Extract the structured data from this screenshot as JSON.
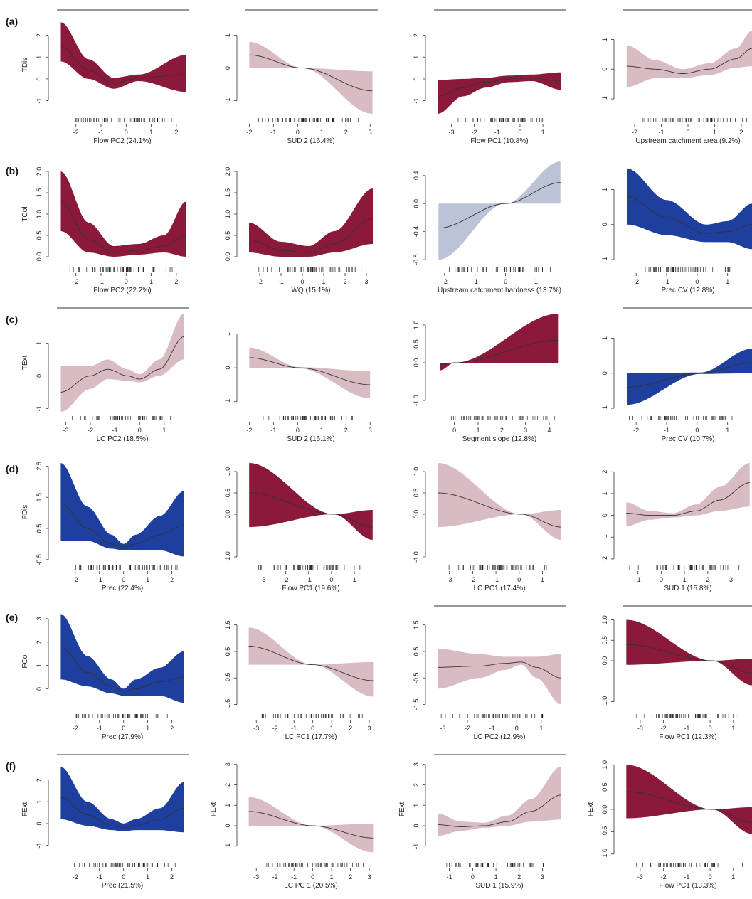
{
  "rows": [
    "(a)",
    "(b)",
    "(c)",
    "(d)",
    "(e)",
    "(f)"
  ],
  "colors": {
    "maroon": "#8b1a3a",
    "blue": "#1f3f9e",
    "pink": "#d9bcc3",
    "lavender": "#bcc3d6",
    "line": "#333333"
  },
  "chart_data": [
    {
      "type": "line",
      "ylabel": "TDis",
      "xlabel": "Flow PC2 (24.1%)",
      "xlim": [
        -2.7,
        2.4
      ],
      "ylim": [
        -1.6,
        2.9
      ],
      "xticks": [
        -2,
        -1,
        0,
        1,
        2
      ],
      "yticks": [
        -1,
        0,
        1,
        2
      ],
      "top_line": true,
      "band_color": "maroon",
      "x": [
        -2.6,
        -1.5,
        -0.5,
        0.5,
        2.4
      ],
      "fit": [
        1.5,
        0.4,
        -0.2,
        0.05,
        0.2
      ],
      "lower": [
        0.8,
        0.0,
        -0.45,
        -0.1,
        -0.6
      ],
      "upper": [
        2.6,
        0.9,
        0.05,
        0.2,
        1.1
      ]
    },
    {
      "type": "line",
      "ylabel": "",
      "xlabel": "SUD 2 (16.4%)",
      "xlim": [
        -2.1,
        3.2
      ],
      "ylim": [
        -1.4,
        1.6
      ],
      "xticks": [
        -2,
        -1,
        0,
        1,
        2,
        3
      ],
      "yticks": [
        -1.0,
        0.0,
        1.0
      ],
      "top_line": true,
      "band_color": "pink",
      "x": [
        -2,
        0.2,
        3.1
      ],
      "fit": [
        0.4,
        0.0,
        -0.7
      ],
      "lower": [
        0.0,
        0.0,
        -1.4
      ],
      "upper": [
        0.8,
        0.0,
        -0.1
      ]
    },
    {
      "type": "line",
      "ylabel": "",
      "xlabel": "Flow PC1 (10.8%)",
      "xlim": [
        -3.7,
        1.9
      ],
      "ylim": [
        -1.6,
        2.9
      ],
      "xticks": [
        -3,
        -2,
        -1,
        0,
        1
      ],
      "yticks": [
        -1,
        0,
        1,
        2
      ],
      "top_line": true,
      "band_color": "maroon",
      "x": [
        -3.6,
        -2.5,
        -1.5,
        -0.5,
        0.5,
        1.8
      ],
      "fit": [
        -0.8,
        -0.4,
        -0.15,
        0.0,
        0.05,
        -0.1
      ],
      "lower": [
        -1.6,
        -0.8,
        -0.4,
        -0.15,
        -0.1,
        -0.5
      ],
      "upper": [
        -0.05,
        0.0,
        0.05,
        0.15,
        0.2,
        0.3
      ]
    },
    {
      "type": "line",
      "ylabel": "",
      "xlabel": "Upstream catchment area (9.2%)",
      "xlim": [
        -2.4,
        2.4
      ],
      "ylim": [
        -1.5,
        1.8
      ],
      "xticks": [
        -2,
        -1,
        0,
        1,
        2
      ],
      "yticks": [
        -1.0,
        0.0,
        1.0
      ],
      "top_line": true,
      "band_color": "pink",
      "x": [
        -2.3,
        -1.2,
        -0.2,
        0.8,
        1.8,
        2.4
      ],
      "fit": [
        0.1,
        0.0,
        -0.15,
        0.0,
        0.35,
        0.7
      ],
      "lower": [
        -0.6,
        -0.3,
        -0.3,
        -0.2,
        0.05,
        0.1
      ],
      "upper": [
        0.8,
        0.3,
        0.0,
        0.2,
        0.7,
        1.3
      ]
    },
    {
      "type": "line",
      "ylabel": "TCol",
      "xlabel": "Flow PC2 (22.2%)",
      "xlim": [
        -2.7,
        2.4
      ],
      "ylim": [
        -0.15,
        2.15
      ],
      "xticks": [
        -2,
        -1,
        0,
        1,
        2
      ],
      "yticks": [
        0.0,
        0.5,
        1.0,
        1.5,
        2.0
      ],
      "top_line": false,
      "band_color": "maroon",
      "x": [
        -2.6,
        -1.5,
        -0.5,
        0.5,
        1.5,
        2.4
      ],
      "fit": [
        1.3,
        0.4,
        0.1,
        0.15,
        0.25,
        0.5
      ],
      "lower": [
        0.6,
        0.1,
        0.0,
        0.05,
        0.1,
        0.0
      ],
      "upper": [
        2.0,
        0.8,
        0.25,
        0.3,
        0.5,
        1.3
      ]
    },
    {
      "type": "line",
      "ylabel": "",
      "xlabel": "WQ (15.1%)",
      "xlim": [
        -2.6,
        3.4
      ],
      "ylim": [
        -0.15,
        2.15
      ],
      "xticks": [
        -2,
        -1,
        0,
        1,
        2,
        3
      ],
      "yticks": [
        0.0,
        0.5,
        1.0,
        1.5,
        2.0
      ],
      "top_line": false,
      "band_color": "maroon",
      "x": [
        -2.5,
        -1,
        0.3,
        1.5,
        3.3
      ],
      "fit": [
        0.4,
        0.15,
        0.1,
        0.3,
        0.9
      ],
      "lower": [
        0.1,
        0.0,
        0.0,
        0.1,
        0.3
      ],
      "upper": [
        0.8,
        0.35,
        0.25,
        0.6,
        1.6
      ]
    },
    {
      "type": "line",
      "ylabel": "",
      "xlabel": "Upstream catchment hardness (13.7%)",
      "xlim": [
        -2.3,
        1.9
      ],
      "ylim": [
        -0.85,
        0.55
      ],
      "xticks": [
        -2,
        -1,
        0,
        1
      ],
      "yticks": [
        -0.8,
        -0.4,
        0.0,
        0.4
      ],
      "top_line": false,
      "band_color": "lavender",
      "x": [
        -2.2,
        0,
        1.8
      ],
      "fit": [
        -0.35,
        0.0,
        0.3
      ],
      "lower": [
        -0.8,
        0.0,
        0.0
      ],
      "upper": [
        0.0,
        0.0,
        0.6
      ]
    },
    {
      "type": "line",
      "ylabel": "",
      "xlabel": "Prec CV (12.8%)",
      "xlim": [
        -2.4,
        1.8
      ],
      "ylim": [
        -1.1,
        1.7
      ],
      "xticks": [
        -2,
        -1,
        0,
        1
      ],
      "yticks": [
        -1.0,
        0.0,
        1.0
      ],
      "top_line": false,
      "band_color": "blue",
      "x": [
        -2.3,
        -1,
        0.3,
        1.0,
        1.8
      ],
      "fit": [
        0.8,
        0.2,
        -0.25,
        -0.2,
        0.0
      ],
      "lower": [
        0.0,
        -0.3,
        -0.5,
        -0.5,
        -0.7
      ],
      "upper": [
        1.6,
        0.7,
        0.0,
        0.1,
        0.6
      ]
    },
    {
      "type": "line",
      "ylabel": "TExt",
      "xlabel": "LC PC2 (18.5%)",
      "xlim": [
        -3.3,
        1.9
      ],
      "ylim": [
        -1.1,
        1.9
      ],
      "xticks": [
        -3,
        -2,
        -1,
        0,
        1
      ],
      "yticks": [
        -1.0,
        0.0,
        1.0
      ],
      "top_line": true,
      "band_color": "pink",
      "x": [
        -3.2,
        -2,
        -1.3,
        -0.5,
        0,
        0.8,
        1.8
      ],
      "fit": [
        -0.5,
        0.0,
        0.2,
        0.0,
        -0.1,
        0.2,
        1.2
      ],
      "lower": [
        -1.1,
        -0.4,
        -0.1,
        -0.15,
        -0.2,
        0.0,
        0.5
      ],
      "upper": [
        0.3,
        0.3,
        0.5,
        0.2,
        0.05,
        0.5,
        1.9
      ]
    },
    {
      "type": "line",
      "ylabel": "",
      "xlabel": "SUD 2 (16.1%)",
      "xlim": [
        -2.1,
        3.2
      ],
      "ylim": [
        -1.3,
        1.6
      ],
      "xticks": [
        -2,
        -1,
        0,
        1,
        2,
        3
      ],
      "yticks": [
        -1.0,
        0.0,
        1.0
      ],
      "top_line": false,
      "band_color": "pink",
      "x": [
        -2,
        0.1,
        3
      ],
      "fit": [
        0.3,
        0.0,
        -0.5
      ],
      "lower": [
        0.0,
        -0.02,
        -0.9
      ],
      "upper": [
        0.6,
        0.02,
        -0.1
      ]
    },
    {
      "type": "line",
      "ylabel": "",
      "xlabel": "Segment slope (12.8%)",
      "xlim": [
        -0.8,
        4.6
      ],
      "ylim": [
        -1.3,
        1.3
      ],
      "xticks": [
        0,
        1,
        2,
        3,
        4
      ],
      "yticks": [
        -1.0,
        0.0,
        0.5,
        1.0
      ],
      "top_line": false,
      "band_color": "maroon",
      "x": [
        -0.6,
        0,
        4.4
      ],
      "fit": [
        -0.05,
        0.0,
        0.6
      ],
      "lower": [
        -0.2,
        0.0,
        0.0
      ],
      "upper": [
        0.0,
        0.0,
        1.3
      ]
    },
    {
      "type": "line",
      "ylabel": "",
      "xlabel": "Prec CV (10.7%)",
      "xlim": [
        -2.4,
        1.8
      ],
      "ylim": [
        -1.1,
        1.7
      ],
      "xticks": [
        -2,
        -1,
        0,
        1
      ],
      "yticks": [
        -1.0,
        0.0,
        1.0
      ],
      "top_line": true,
      "band_color": "blue",
      "x": [
        -2.3,
        0.1,
        1.8
      ],
      "fit": [
        -0.4,
        0.0,
        0.3
      ],
      "lower": [
        -0.9,
        -0.02,
        0.0
      ],
      "upper": [
        0.0,
        0.02,
        0.7
      ]
    },
    {
      "type": "line",
      "ylabel": "FDis",
      "xlabel": "Prec (22.4%)",
      "xlim": [
        -2.7,
        2.6
      ],
      "ylim": [
        -0.55,
        2.6
      ],
      "xticks": [
        -2,
        -1,
        0,
        1,
        2
      ],
      "yticks": [
        -0.5,
        0.5,
        1.5,
        2.5
      ],
      "top_line": false,
      "band_color": "blue",
      "x": [
        -2.6,
        -1.5,
        -0.5,
        0,
        0.5,
        1.5,
        2.5
      ],
      "fit": [
        1.3,
        0.5,
        0.0,
        -0.1,
        0.0,
        0.3,
        0.6
      ],
      "lower": [
        0.1,
        0.1,
        -0.15,
        -0.2,
        -0.2,
        -0.2,
        -0.4
      ],
      "upper": [
        2.6,
        1.2,
        0.3,
        0.0,
        0.3,
        0.9,
        1.7
      ]
    },
    {
      "type": "line",
      "ylabel": "",
      "xlabel": "Flow PC1 (19.6%)",
      "xlim": [
        -3.7,
        1.9
      ],
      "ylim": [
        -1.1,
        1.2
      ],
      "xticks": [
        -3,
        -2,
        -1,
        0,
        1
      ],
      "yticks": [
        -1.0,
        0.0,
        0.5,
        1.0
      ],
      "top_line": false,
      "band_color": "maroon",
      "x": [
        -3.6,
        0.1,
        1.8
      ],
      "fit": [
        0.5,
        0.0,
        -0.3
      ],
      "lower": [
        -0.3,
        0.0,
        -0.6
      ],
      "upper": [
        1.2,
        0.0,
        0.1
      ]
    },
    {
      "type": "line",
      "ylabel": "",
      "xlabel": "LC PC1 (17.4%)",
      "xlim": [
        -3.6,
        1.9
      ],
      "ylim": [
        -1.1,
        1.2
      ],
      "xticks": [
        -3,
        -2,
        -1,
        0,
        1
      ],
      "yticks": [
        -1.0,
        0.0,
        0.5,
        1.0
      ],
      "top_line": false,
      "band_color": "pink",
      "x": [
        -3.5,
        0.1,
        1.8
      ],
      "fit": [
        0.5,
        0.0,
        -0.3
      ],
      "lower": [
        -0.3,
        0.0,
        -0.6
      ],
      "upper": [
        1.2,
        0.0,
        0.1
      ]
    },
    {
      "type": "line",
      "ylabel": "",
      "xlabel": "SUD 1 (15.8%)",
      "xlim": [
        -1.6,
        3.9
      ],
      "ylim": [
        -2.1,
        2.4
      ],
      "xticks": [
        -1,
        0,
        1,
        2,
        3
      ],
      "yticks": [
        -2,
        -1,
        0,
        1,
        2
      ],
      "top_line": false,
      "band_color": "pink",
      "x": [
        -1.5,
        -0.5,
        0.5,
        1.5,
        2.5,
        3.8
      ],
      "fit": [
        0.1,
        0.0,
        0.0,
        0.2,
        0.7,
        1.5
      ],
      "lower": [
        -0.5,
        -0.2,
        -0.1,
        0.0,
        0.2,
        0.4
      ],
      "upper": [
        0.6,
        0.2,
        0.1,
        0.5,
        1.3,
        2.4
      ]
    },
    {
      "type": "line",
      "ylabel": "FCol",
      "xlabel": "Prec (27.9%)",
      "xlim": [
        -2.7,
        2.6
      ],
      "ylim": [
        -0.9,
        3.3
      ],
      "xticks": [
        -2,
        -1,
        0,
        1,
        2
      ],
      "yticks": [
        0,
        1,
        2,
        3
      ],
      "top_line": false,
      "band_color": "blue",
      "x": [
        -2.6,
        -1.5,
        -0.5,
        0,
        0.5,
        1.5,
        2.5
      ],
      "fit": [
        1.8,
        0.7,
        0.1,
        -0.1,
        0.0,
        0.3,
        0.5
      ],
      "lower": [
        0.4,
        0.1,
        -0.2,
        -0.3,
        -0.3,
        -0.3,
        -0.6
      ],
      "upper": [
        3.2,
        1.4,
        0.4,
        0.0,
        0.4,
        0.9,
        1.6
      ]
    },
    {
      "type": "line",
      "ylabel": "",
      "xlabel": "LC PC1 (17.7%)",
      "xlim": [
        -3.5,
        3.3
      ],
      "ylim": [
        -1.7,
        2.0
      ],
      "xticks": [
        -3,
        -2,
        -1,
        0,
        1,
        2,
        3
      ],
      "yticks": [
        -1.5,
        -0.5,
        0.5,
        1.5
      ],
      "top_line": false,
      "band_color": "pink",
      "x": [
        -3.4,
        0,
        3.2
      ],
      "fit": [
        0.7,
        0.0,
        -0.6
      ],
      "lower": [
        0.0,
        0.0,
        -1.2
      ],
      "upper": [
        1.4,
        0.0,
        0.1
      ]
    },
    {
      "type": "line",
      "ylabel": "",
      "xlabel": "LC PC2 (12.9%)",
      "xlim": [
        -3.3,
        1.9
      ],
      "ylim": [
        -1.7,
        2.0
      ],
      "xticks": [
        -3,
        -2,
        -1,
        0,
        1
      ],
      "yticks": [
        -1.5,
        -0.5,
        0.5,
        1.5
      ],
      "top_line": true,
      "band_color": "pink",
      "x": [
        -3.2,
        -1.5,
        -0.5,
        0.2,
        0.8,
        1.8
      ],
      "fit": [
        -0.1,
        -0.05,
        0.05,
        0.1,
        -0.1,
        -0.5
      ],
      "lower": [
        -0.9,
        -0.5,
        -0.2,
        0.0,
        -0.5,
        -1.5
      ],
      "upper": [
        0.6,
        0.4,
        0.3,
        0.3,
        0.3,
        0.4
      ]
    },
    {
      "type": "line",
      "ylabel": "",
      "xlabel": "Flow PC1 (12.3%)",
      "xlim": [
        -3.7,
        1.8
      ],
      "ylim": [
        -1.2,
        1.2
      ],
      "xticks": [
        -3,
        -2,
        -1,
        0,
        1
      ],
      "yticks": [
        -1.0,
        0.0,
        0.5,
        1.0
      ],
      "top_line": true,
      "band_color": "maroon",
      "x": [
        -3.6,
        0.1,
        1.8
      ],
      "fit": [
        0.4,
        0.0,
        -0.3
      ],
      "lower": [
        -0.1,
        0.0,
        -0.6
      ],
      "upper": [
        1.0,
        0.0,
        0.05
      ]
    },
    {
      "type": "line",
      "ylabel": "FExt",
      "xlabel": "Prec (21.5%)",
      "xlim": [
        -2.7,
        2.6
      ],
      "ylim": [
        -1.6,
        2.9
      ],
      "xticks": [
        -2,
        -1,
        0,
        1,
        2
      ],
      "yticks": [
        -1,
        0,
        1,
        2
      ],
      "top_line": true,
      "band_color": "blue",
      "x": [
        -2.6,
        -1.5,
        -0.5,
        0,
        0.5,
        1.5,
        2.5
      ],
      "fit": [
        1.2,
        0.4,
        -0.1,
        -0.2,
        -0.1,
        0.2,
        0.7
      ],
      "lower": [
        0.2,
        -0.1,
        -0.3,
        -0.35,
        -0.3,
        -0.3,
        -0.4
      ],
      "upper": [
        2.6,
        1.0,
        0.2,
        0.0,
        0.2,
        0.7,
        1.9
      ]
    },
    {
      "type": "line",
      "ylabel": "FExt",
      "xlabel": "LC PC 1 (20.5%)",
      "xlim": [
        -3.5,
        3.3
      ],
      "ylim": [
        -1.6,
        3.2
      ],
      "xticks": [
        -3,
        -2,
        -1,
        0,
        1,
        2,
        3
      ],
      "yticks": [
        -1,
        0,
        1,
        2,
        3
      ],
      "top_line": false,
      "band_color": "pink",
      "x": [
        -3.4,
        0,
        3.2
      ],
      "fit": [
        0.7,
        0.0,
        -0.6
      ],
      "lower": [
        0.0,
        0.0,
        -1.3
      ],
      "upper": [
        1.4,
        0.0,
        0.1
      ]
    },
    {
      "type": "line",
      "ylabel": "FExt",
      "xlabel": "SUD 1 (15.9%)",
      "xlim": [
        -1.6,
        3.9
      ],
      "ylim": [
        -1.6,
        3.2
      ],
      "xticks": [
        -1,
        0,
        1,
        2,
        3
      ],
      "yticks": [
        -1,
        0,
        1,
        2,
        3
      ],
      "top_line": true,
      "band_color": "pink",
      "x": [
        -1.5,
        -0.5,
        0.5,
        1.5,
        2.5,
        3.8
      ],
      "fit": [
        0.05,
        -0.05,
        0.0,
        0.2,
        0.7,
        1.5
      ],
      "lower": [
        -0.5,
        -0.25,
        -0.1,
        0.0,
        0.2,
        0.3
      ],
      "upper": [
        0.6,
        0.2,
        0.15,
        0.5,
        1.3,
        2.9
      ]
    },
    {
      "type": "line",
      "ylabel": "FExt",
      "xlabel": "Flow PC1 (13.3%)",
      "xlim": [
        -3.7,
        1.8
      ],
      "ylim": [
        -1.1,
        1.1
      ],
      "xticks": [
        -3,
        -2,
        -1,
        0,
        1
      ],
      "yticks": [
        -1.0,
        -0.5,
        0.0,
        0.5,
        1.0
      ],
      "top_line": false,
      "band_color": "maroon",
      "x": [
        -3.6,
        0.1,
        1.8
      ],
      "fit": [
        0.4,
        0.0,
        -0.3
      ],
      "lower": [
        -0.2,
        0.0,
        -0.55
      ],
      "upper": [
        1.0,
        0.0,
        0.05
      ]
    }
  ]
}
